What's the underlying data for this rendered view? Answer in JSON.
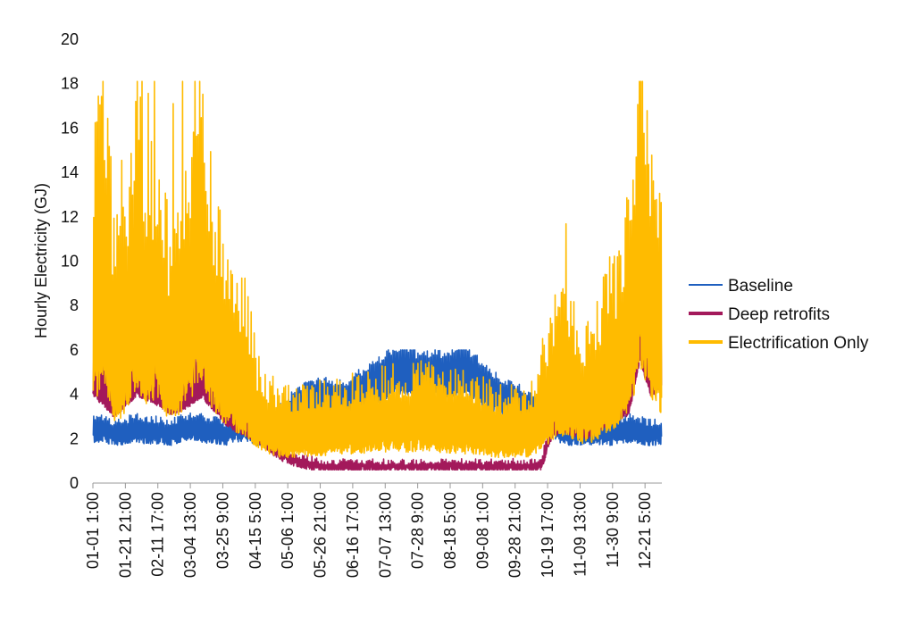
{
  "chart_data": {
    "type": "line",
    "title": "",
    "xlabel": "",
    "ylabel": "Hourly Electricity (GJ)",
    "ylim": [
      0,
      20
    ],
    "yticks": [
      0,
      2,
      4,
      6,
      8,
      10,
      12,
      14,
      16,
      18,
      20
    ],
    "x_tick_labels": [
      "01-01 1:00",
      "01-21 21:00",
      "02-11 17:00",
      "03-04 13:00",
      "03-25 9:00",
      "04-15 5:00",
      "05-06 1:00",
      "05-26 21:00",
      "06-16 17:00",
      "07-07 13:00",
      "07-28 9:00",
      "08-18 5:00",
      "09-08 1:00",
      "09-28 21:00",
      "10-19 17:00",
      "11-09 13:00",
      "11-30 9:00",
      "12-21 5:00"
    ],
    "grid": false,
    "legend_position": "right",
    "series": [
      {
        "name": "Baseline",
        "color": "#1f5fbf",
        "x": [
          "01-01",
          "01-08",
          "01-15",
          "01-22",
          "01-29",
          "02-05",
          "02-12",
          "02-19",
          "02-26",
          "03-05",
          "03-12",
          "03-19",
          "03-26",
          "04-02",
          "04-09",
          "04-16",
          "04-23",
          "04-30",
          "05-07",
          "05-14",
          "05-21",
          "05-28",
          "06-04",
          "06-11",
          "06-18",
          "06-25",
          "07-02",
          "07-09",
          "07-16",
          "07-23",
          "07-30",
          "08-06",
          "08-13",
          "08-20",
          "08-27",
          "09-03",
          "09-10",
          "09-17",
          "09-24",
          "10-01",
          "10-08",
          "10-15",
          "10-22",
          "10-29",
          "11-05",
          "11-12",
          "11-19",
          "11-26",
          "12-03",
          "12-10",
          "12-17",
          "12-24",
          "12-31"
        ],
        "values": [
          2.6,
          2.6,
          2.4,
          2.5,
          2.6,
          2.5,
          2.5,
          2.4,
          2.6,
          2.7,
          2.6,
          2.5,
          2.4,
          2.6,
          2.7,
          2.4,
          2.6,
          3.0,
          3.4,
          3.8,
          4.0,
          4.1,
          4.0,
          3.9,
          4.3,
          4.5,
          4.8,
          5.2,
          5.4,
          5.3,
          5.0,
          5.2,
          5.1,
          5.3,
          5.4,
          5.0,
          4.6,
          4.2,
          4.0,
          3.8,
          3.6,
          3.3,
          2.8,
          2.5,
          2.4,
          2.4,
          2.5,
          2.4,
          2.5,
          2.6,
          2.5,
          2.4,
          2.5
        ],
        "max_value": 6.0
      },
      {
        "name": "Deep retrofits",
        "color": "#a3195b",
        "x": [
          "01-01",
          "01-08",
          "01-15",
          "01-22",
          "01-29",
          "02-05",
          "02-12",
          "02-19",
          "02-26",
          "03-05",
          "03-12",
          "03-19",
          "03-26",
          "04-02",
          "04-09",
          "04-16",
          "04-23",
          "04-30",
          "05-07",
          "05-14",
          "05-21",
          "05-28",
          "06-04",
          "06-11",
          "06-18",
          "06-25",
          "07-02",
          "07-09",
          "07-16",
          "07-23",
          "07-30",
          "08-06",
          "08-13",
          "08-20",
          "08-27",
          "09-03",
          "09-10",
          "09-17",
          "09-24",
          "10-01",
          "10-08",
          "10-15",
          "10-22",
          "10-29",
          "11-05",
          "11-12",
          "11-19",
          "11-26",
          "12-03",
          "12-10",
          "12-17",
          "12-24",
          "12-31"
        ],
        "values": [
          5.0,
          4.5,
          3.8,
          4.5,
          5.0,
          4.8,
          4.5,
          4.0,
          4.2,
          4.5,
          5.0,
          4.2,
          3.5,
          3.0,
          2.8,
          2.4,
          2.0,
          1.5,
          1.2,
          1.0,
          0.9,
          0.8,
          0.8,
          0.8,
          0.8,
          0.8,
          0.8,
          0.8,
          0.8,
          0.8,
          0.8,
          0.8,
          0.8,
          0.8,
          0.8,
          0.8,
          0.8,
          0.8,
          0.8,
          0.8,
          0.8,
          0.8,
          2.8,
          3.0,
          2.8,
          2.6,
          3.0,
          3.2,
          3.6,
          4.0,
          7.0,
          5.0,
          5.5
        ],
        "max_value": 9.0
      },
      {
        "name": "Electrification Only",
        "color": "#ffbb00",
        "x": [
          "01-01",
          "01-08",
          "01-15",
          "01-22",
          "01-29",
          "02-05",
          "02-12",
          "02-19",
          "02-26",
          "03-05",
          "03-12",
          "03-19",
          "03-26",
          "04-02",
          "04-09",
          "04-16",
          "04-23",
          "04-30",
          "05-07",
          "05-14",
          "05-21",
          "05-28",
          "06-04",
          "06-11",
          "06-18",
          "06-25",
          "07-02",
          "07-09",
          "07-16",
          "07-23",
          "07-30",
          "08-06",
          "08-13",
          "08-20",
          "08-27",
          "09-03",
          "09-10",
          "09-17",
          "09-24",
          "10-01",
          "10-08",
          "10-15",
          "10-22",
          "10-29",
          "11-05",
          "11-12",
          "11-19",
          "11-26",
          "12-03",
          "12-10",
          "12-17",
          "12-24",
          "12-31"
        ],
        "values": [
          9.0,
          12.0,
          7.0,
          8.0,
          11.0,
          9.0,
          10.0,
          7.0,
          8.0,
          10.0,
          12.0,
          8.0,
          7.0,
          6.0,
          5.5,
          4.0,
          3.5,
          3.0,
          3.0,
          3.0,
          3.2,
          3.2,
          3.3,
          3.3,
          3.5,
          3.5,
          3.6,
          3.6,
          3.7,
          3.6,
          3.7,
          3.6,
          3.5,
          3.5,
          3.4,
          3.3,
          3.2,
          3.0,
          3.0,
          3.0,
          3.0,
          4.0,
          5.0,
          5.5,
          5.0,
          4.5,
          5.0,
          6.0,
          6.5,
          8.0,
          13.0,
          10.0,
          8.0
        ],
        "max_value": 18.1
      }
    ]
  }
}
